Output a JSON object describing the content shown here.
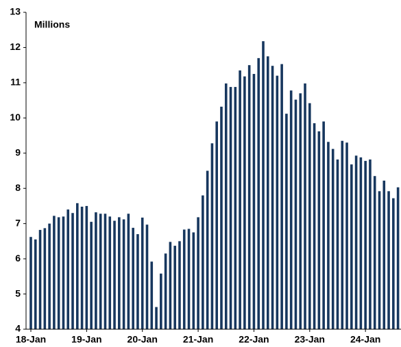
{
  "chart_data": {
    "type": "bar",
    "y_label": "Millions",
    "color": "#17375e",
    "categories": [
      "18-Jan",
      null,
      null,
      null,
      null,
      null,
      null,
      null,
      null,
      null,
      null,
      null,
      "19-Jan",
      null,
      null,
      null,
      null,
      null,
      null,
      null,
      null,
      null,
      null,
      null,
      "20-Jan",
      null,
      null,
      null,
      null,
      null,
      null,
      null,
      null,
      null,
      null,
      null,
      "21-Jan",
      null,
      null,
      null,
      null,
      null,
      null,
      null,
      null,
      null,
      null,
      null,
      "22-Jan",
      null,
      null,
      null,
      null,
      null,
      null,
      null,
      null,
      null,
      null,
      null,
      "23-Jan",
      null,
      null,
      null,
      null,
      null,
      null,
      null,
      null,
      null,
      null,
      null,
      "24-Jan",
      null,
      null,
      null,
      null,
      null,
      null,
      null
    ],
    "values": [
      6.62,
      6.55,
      6.82,
      6.87,
      7.0,
      7.22,
      7.18,
      7.2,
      7.4,
      7.3,
      7.58,
      7.48,
      7.5,
      7.05,
      7.32,
      7.28,
      7.28,
      7.2,
      7.08,
      7.18,
      7.12,
      7.28,
      6.88,
      6.7,
      7.17,
      6.97,
      5.92,
      4.63,
      5.58,
      6.15,
      6.48,
      6.37,
      6.5,
      6.83,
      6.85,
      6.75,
      7.18,
      7.8,
      8.5,
      9.28,
      9.9,
      10.32,
      10.98,
      10.88,
      10.88,
      11.35,
      11.18,
      11.5,
      11.25,
      11.7,
      12.18,
      11.75,
      11.48,
      11.2,
      11.53,
      10.12,
      10.78,
      10.52,
      10.7,
      10.98,
      10.42,
      9.85,
      9.62,
      9.9,
      9.32,
      9.12,
      8.82,
      9.35,
      9.3,
      8.68,
      8.93,
      8.88,
      8.78,
      8.82,
      8.35,
      7.92,
      8.22,
      7.92,
      7.72,
      8.03
    ],
    "ylim": [
      4,
      13
    ],
    "yticks": [
      4,
      5,
      6,
      7,
      8,
      9,
      10,
      11,
      12,
      13
    ]
  }
}
